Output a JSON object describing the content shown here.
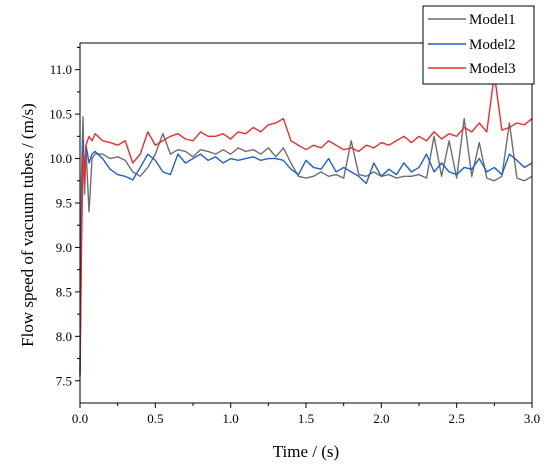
{
  "chart_data": {
    "type": "line",
    "xlabel": "Time / (s)",
    "ylabel": "Flow speed of vacuum tubes / (m/s)",
    "xlim": [
      0.0,
      3.0
    ],
    "ylim": [
      7.25,
      11.3
    ],
    "xticks": [
      0.0,
      0.5,
      1.0,
      1.5,
      2.0,
      2.5,
      3.0
    ],
    "xtick_labels": [
      "0.0",
      "0.5",
      "1.0",
      "1.5",
      "2.0",
      "2.5",
      "3.0"
    ],
    "yticks": [
      7.5,
      8.0,
      8.5,
      9.0,
      9.5,
      10.0,
      10.5,
      11.0
    ],
    "ytick_labels": [
      "7.5",
      "8.0",
      "8.5",
      "9.0",
      "9.5",
      "10.0",
      "10.5",
      "11.0"
    ],
    "grid": false,
    "legend_position": "top-right",
    "series": [
      {
        "name": "Model1",
        "color": "#6e6e6e",
        "x": [
          0.0,
          0.01,
          0.02,
          0.03,
          0.04,
          0.06,
          0.08,
          0.1,
          0.15,
          0.2,
          0.25,
          0.3,
          0.35,
          0.4,
          0.45,
          0.5,
          0.55,
          0.6,
          0.65,
          0.7,
          0.75,
          0.8,
          0.85,
          0.9,
          0.95,
          1.0,
          1.05,
          1.1,
          1.15,
          1.2,
          1.25,
          1.3,
          1.35,
          1.4,
          1.45,
          1.5,
          1.55,
          1.6,
          1.65,
          1.7,
          1.75,
          1.8,
          1.85,
          1.9,
          1.95,
          2.0,
          2.05,
          2.1,
          2.15,
          2.2,
          2.25,
          2.3,
          2.35,
          2.4,
          2.45,
          2.5,
          2.55,
          2.6,
          2.65,
          2.7,
          2.75,
          2.8,
          2.85,
          2.9,
          2.95,
          3.0
        ],
        "y": [
          7.55,
          9.8,
          10.47,
          9.6,
          10.1,
          9.4,
          10.0,
          10.05,
          10.05,
          10.0,
          10.02,
          9.98,
          9.85,
          9.8,
          9.9,
          10.05,
          10.28,
          10.05,
          10.1,
          10.08,
          10.02,
          10.1,
          10.08,
          10.05,
          10.1,
          10.05,
          10.12,
          10.08,
          10.1,
          10.05,
          10.12,
          10.02,
          10.12,
          9.95,
          9.8,
          9.78,
          9.8,
          9.85,
          9.8,
          9.82,
          9.78,
          10.2,
          9.82,
          9.8,
          9.85,
          9.8,
          9.82,
          9.78,
          9.8,
          9.8,
          9.82,
          9.78,
          10.25,
          9.8,
          10.2,
          9.78,
          10.45,
          9.8,
          10.18,
          9.78,
          9.75,
          9.8,
          10.4,
          9.78,
          9.75,
          9.8
        ]
      },
      {
        "name": "Model2",
        "color": "#1f5fd1",
        "x": [
          0.0,
          0.01,
          0.02,
          0.03,
          0.04,
          0.06,
          0.08,
          0.1,
          0.15,
          0.2,
          0.25,
          0.3,
          0.35,
          0.4,
          0.45,
          0.5,
          0.55,
          0.6,
          0.65,
          0.7,
          0.75,
          0.8,
          0.85,
          0.9,
          0.95,
          1.0,
          1.05,
          1.1,
          1.15,
          1.2,
          1.25,
          1.3,
          1.35,
          1.4,
          1.45,
          1.5,
          1.55,
          1.6,
          1.65,
          1.7,
          1.75,
          1.8,
          1.85,
          1.9,
          1.95,
          2.0,
          2.05,
          2.1,
          2.15,
          2.2,
          2.25,
          2.3,
          2.35,
          2.4,
          2.45,
          2.5,
          2.55,
          2.6,
          2.65,
          2.7,
          2.75,
          2.8,
          2.85,
          2.9,
          2.95,
          3.0
        ],
        "y": [
          7.6,
          9.2,
          10.2,
          9.8,
          10.15,
          9.95,
          10.05,
          10.08,
          10.0,
          9.88,
          9.82,
          9.8,
          9.76,
          9.9,
          10.05,
          9.98,
          9.85,
          9.82,
          10.05,
          9.95,
          10.0,
          10.05,
          9.98,
          10.02,
          9.95,
          10.0,
          9.98,
          10.0,
          10.02,
          9.98,
          10.0,
          10.0,
          9.98,
          9.88,
          9.82,
          9.98,
          9.9,
          9.88,
          10.0,
          9.85,
          9.9,
          9.85,
          9.8,
          9.72,
          9.95,
          9.8,
          9.88,
          9.82,
          9.95,
          9.85,
          9.9,
          10.05,
          9.85,
          9.95,
          9.85,
          9.82,
          9.9,
          9.88,
          10.0,
          9.85,
          9.9,
          9.82,
          10.05,
          9.98,
          9.9,
          9.95
        ]
      },
      {
        "name": "Model3",
        "color": "#e53030",
        "x": [
          0.0,
          0.01,
          0.02,
          0.03,
          0.04,
          0.06,
          0.08,
          0.1,
          0.15,
          0.2,
          0.25,
          0.3,
          0.35,
          0.4,
          0.45,
          0.5,
          0.55,
          0.6,
          0.65,
          0.7,
          0.75,
          0.8,
          0.85,
          0.9,
          0.95,
          1.0,
          1.05,
          1.1,
          1.15,
          1.2,
          1.25,
          1.3,
          1.35,
          1.4,
          1.45,
          1.5,
          1.55,
          1.6,
          1.65,
          1.7,
          1.75,
          1.8,
          1.85,
          1.9,
          1.95,
          2.0,
          2.05,
          2.1,
          2.15,
          2.2,
          2.25,
          2.3,
          2.35,
          2.4,
          2.45,
          2.5,
          2.55,
          2.6,
          2.65,
          2.7,
          2.75,
          2.8,
          2.85,
          2.9,
          2.95,
          3.0
        ],
        "y": [
          7.55,
          9.0,
          10.05,
          9.7,
          10.15,
          10.25,
          10.2,
          10.28,
          10.2,
          10.18,
          10.15,
          10.2,
          9.95,
          10.05,
          10.3,
          10.15,
          10.2,
          10.25,
          10.28,
          10.22,
          10.2,
          10.3,
          10.25,
          10.25,
          10.28,
          10.22,
          10.3,
          10.28,
          10.35,
          10.3,
          10.38,
          10.4,
          10.45,
          10.2,
          10.15,
          10.1,
          10.15,
          10.12,
          10.2,
          10.15,
          10.1,
          10.12,
          10.08,
          10.15,
          10.12,
          10.18,
          10.15,
          10.2,
          10.25,
          10.18,
          10.25,
          10.2,
          10.3,
          10.22,
          10.28,
          10.25,
          10.35,
          10.3,
          10.4,
          10.3,
          10.95,
          10.32,
          10.35,
          10.4,
          10.38,
          10.45
        ]
      }
    ]
  }
}
